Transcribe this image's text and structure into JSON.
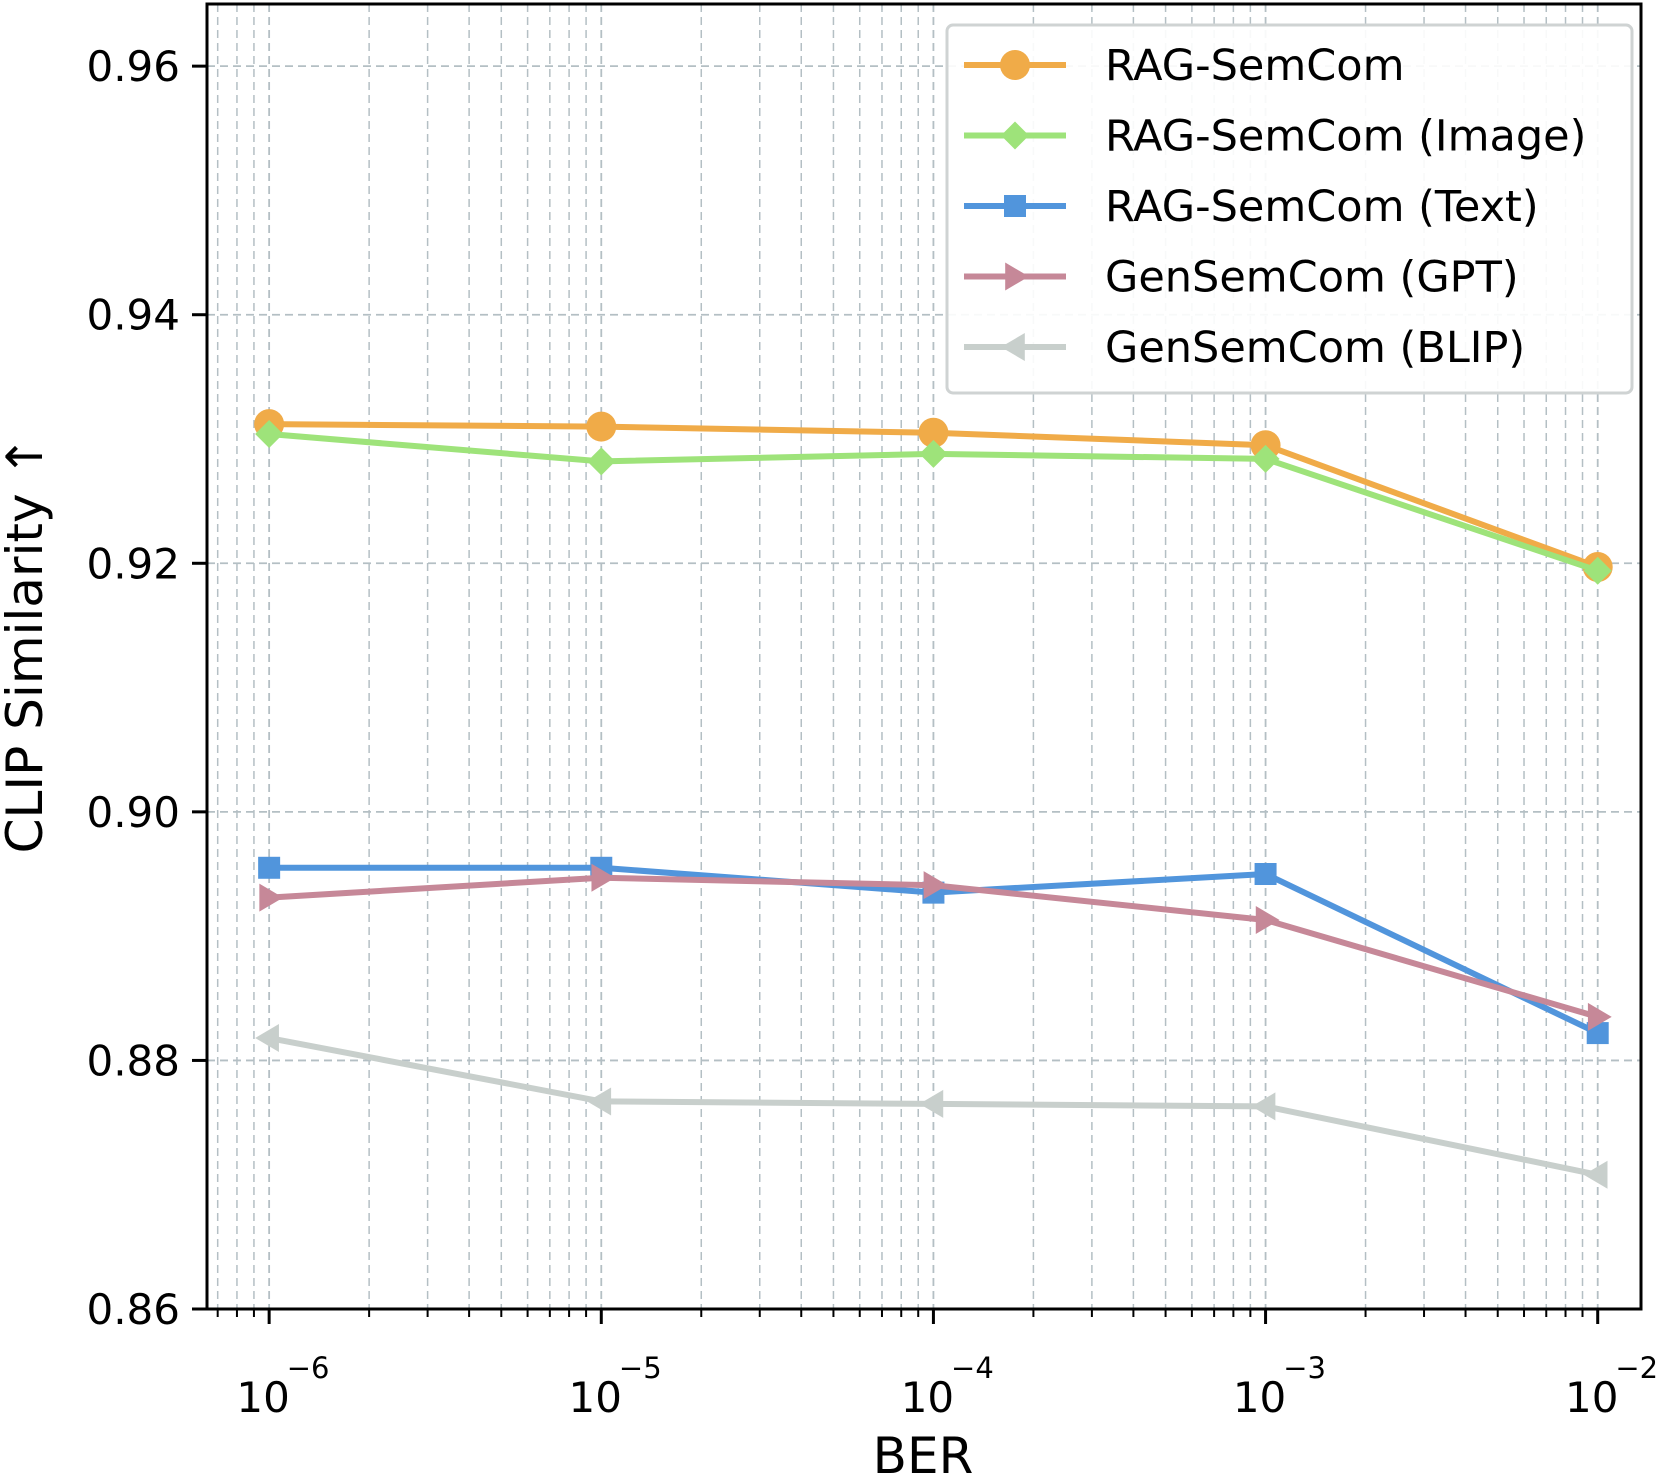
{
  "chart_data": {
    "type": "line",
    "xscale": "log",
    "xlabel": "BER",
    "ylabel": "CLIP Similarity ↑",
    "xlim": [
      6.5e-07,
      0.0135
    ],
    "ylim": [
      0.86,
      0.965
    ],
    "x": [
      1e-06,
      1e-05,
      0.0001,
      0.001,
      0.01
    ],
    "x_ticks": [
      {
        "value": 1e-06,
        "base": "10",
        "exp": "−6"
      },
      {
        "value": 1e-05,
        "base": "10",
        "exp": "−5"
      },
      {
        "value": 0.0001,
        "base": "10",
        "exp": "−4"
      },
      {
        "value": 0.001,
        "base": "10",
        "exp": "−3"
      },
      {
        "value": 0.01,
        "base": "10",
        "exp": "−2"
      }
    ],
    "y_ticks": [
      "0.86",
      "0.88",
      "0.90",
      "0.92",
      "0.94",
      "0.96"
    ],
    "grid": true,
    "legend_position": "top-right",
    "series": [
      {
        "name": "RAG-SemCom",
        "color": "#f0ab48",
        "marker": "circle",
        "values": [
          0.9312,
          0.931,
          0.9305,
          0.9295,
          0.9197
        ]
      },
      {
        "name": "RAG-SemCom (Image)",
        "color": "#9ee37a",
        "marker": "diamond",
        "values": [
          0.9304,
          0.9282,
          0.9288,
          0.9284,
          0.9194
        ]
      },
      {
        "name": "RAG-SemCom (Text)",
        "color": "#5195dc",
        "marker": "square",
        "values": [
          0.8955,
          0.8955,
          0.8935,
          0.895,
          0.8822
        ]
      },
      {
        "name": "GenSemCom (GPT)",
        "color": "#c68898",
        "marker": "triangle-right",
        "values": [
          0.8931,
          0.8947,
          0.8941,
          0.8913,
          0.8835
        ]
      },
      {
        "name": "GenSemCom (BLIP)",
        "color": "#c8cfcc",
        "marker": "triangle-left",
        "values": [
          0.8818,
          0.8767,
          0.8765,
          0.8763,
          0.8708
        ]
      }
    ]
  }
}
